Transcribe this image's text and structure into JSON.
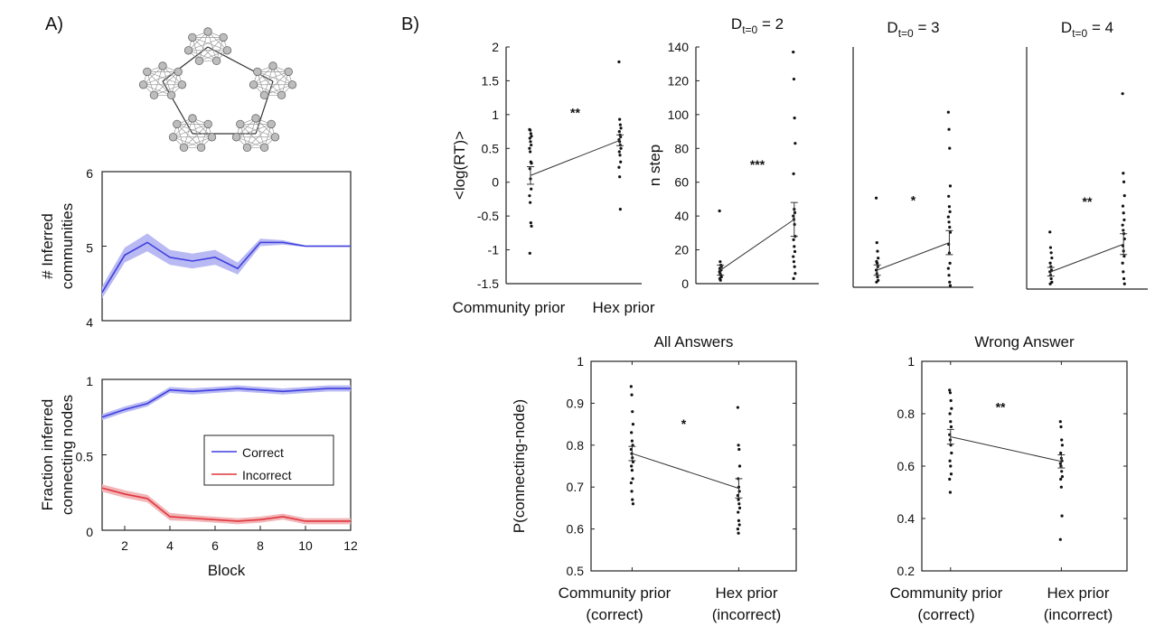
{
  "panels": {
    "a": "A)",
    "b": "B)"
  },
  "network": {
    "label": "modular graph of 5 communities"
  },
  "chart_data": [
    {
      "id": "communities",
      "type": "line",
      "ylabel_lines": [
        "# Inferred",
        "communities"
      ],
      "yticks": [
        4,
        5,
        6
      ],
      "ylim": [
        4,
        6
      ],
      "xlim": [
        1,
        12
      ],
      "colors": {
        "blue": "#3f3fe0",
        "blue_band": "#b9b9f3"
      },
      "series": [
        {
          "x": [
            1,
            2,
            3,
            4,
            5,
            6,
            7,
            8,
            9,
            10,
            11,
            12
          ],
          "values": [
            4.38,
            4.88,
            5.05,
            4.85,
            4.8,
            4.85,
            4.7,
            5.05,
            5.05,
            5.0,
            5.0,
            5.0
          ],
          "band": [
            0.08,
            0.1,
            0.12,
            0.1,
            0.1,
            0.1,
            0.08,
            0.05,
            0.03,
            0.01,
            0.01,
            0.01
          ]
        }
      ]
    },
    {
      "id": "fraction",
      "type": "line",
      "ylabel_lines": [
        "Fraction inferred",
        "connecting nodes"
      ],
      "xlabel": "Block",
      "xticks": [
        2,
        4,
        6,
        8,
        10,
        12
      ],
      "yticks": [
        0,
        0.5,
        1
      ],
      "ylim": [
        0,
        1
      ],
      "xlim": [
        1,
        12
      ],
      "legend_position": "center-right",
      "series": [
        {
          "name": "Correct",
          "color": "#3f3fe0",
          "band_color": "#b9b9f3",
          "x": [
            1,
            2,
            3,
            4,
            5,
            6,
            7,
            8,
            9,
            10,
            11,
            12
          ],
          "values": [
            0.75,
            0.8,
            0.84,
            0.93,
            0.92,
            0.93,
            0.94,
            0.93,
            0.92,
            0.93,
            0.94,
            0.94
          ],
          "band": [
            0.02,
            0.02,
            0.02,
            0.02,
            0.02,
            0.02,
            0.02,
            0.02,
            0.02,
            0.02,
            0.02,
            0.02
          ]
        },
        {
          "name": "Incorrect",
          "color": "#e0353b",
          "band_color": "#f2b6b9",
          "x": [
            1,
            2,
            3,
            4,
            5,
            6,
            7,
            8,
            9,
            10,
            11,
            12
          ],
          "values": [
            0.28,
            0.24,
            0.21,
            0.09,
            0.08,
            0.07,
            0.06,
            0.07,
            0.09,
            0.06,
            0.06,
            0.06
          ],
          "band": [
            0.025,
            0.025,
            0.025,
            0.025,
            0.02,
            0.02,
            0.02,
            0.02,
            0.02,
            0.02,
            0.02,
            0.02
          ]
        }
      ]
    },
    {
      "id": "logrt",
      "type": "scatter",
      "ylabel": "<log(RT)>",
      "yticks": [
        "2",
        "1.5",
        "1",
        "0.5",
        "0",
        "-0.5",
        "-1",
        "-1.5"
      ],
      "ytick_values": [
        2,
        1.5,
        1,
        0.5,
        0,
        -0.5,
        -1,
        -1.5
      ],
      "ylim": [
        -1.5,
        2
      ],
      "categories": [
        "Community prior",
        "Hex prior"
      ],
      "significance": "**",
      "means": [
        0.1,
        0.62
      ],
      "errors": [
        0.13,
        0.08
      ],
      "points": [
        [
          0.78,
          0.77,
          0.72,
          0.68,
          0.65,
          0.6,
          0.55,
          0.5,
          0.45,
          0.3,
          0.28,
          0.2,
          0.05,
          -0.1,
          -0.2,
          -0.3,
          -0.6,
          -0.65,
          -1.05
        ],
        [
          1.78,
          0.93,
          0.85,
          0.8,
          0.75,
          0.7,
          0.67,
          0.63,
          0.6,
          0.55,
          0.5,
          0.45,
          0.4,
          0.3,
          0.22,
          0.08,
          -0.4
        ]
      ]
    },
    {
      "id": "nstep2",
      "type": "scatter",
      "title": "D",
      "title_sub": "t=0",
      "title_suffix": " = 2",
      "ylabel": "n step",
      "yticks": [
        "140",
        "120",
        "100",
        "80",
        "60",
        "40",
        "20",
        "0"
      ],
      "ytick_values": [
        140,
        120,
        100,
        80,
        60,
        40,
        20,
        0
      ],
      "ylim": [
        0,
        140
      ],
      "significance": "***",
      "means": [
        8,
        38
      ],
      "errors": [
        3,
        10
      ],
      "points": [
        [
          43,
          13,
          11,
          10,
          9,
          8,
          8,
          7,
          6,
          5,
          4,
          3,
          2
        ],
        [
          137,
          121,
          98,
          83,
          65,
          44,
          42,
          40,
          38,
          35,
          28,
          26,
          22,
          19,
          16,
          13,
          10,
          6,
          3
        ]
      ]
    },
    {
      "id": "nstep3",
      "type": "scatter",
      "title": "D",
      "title_sub": "t=0",
      "title_suffix": " = 3",
      "ylim": [
        0,
        140
      ],
      "significance": "*",
      "means": [
        10,
        26
      ],
      "errors": [
        3,
        7
      ],
      "points": [
        [
          52,
          26,
          21,
          17,
          15,
          14,
          12,
          10,
          8,
          6,
          4,
          3
        ],
        [
          102,
          92,
          81,
          59,
          53,
          47,
          44,
          41,
          38,
          35,
          32,
          25,
          20,
          14,
          11,
          7,
          3,
          1
        ]
      ]
    },
    {
      "id": "nstep4",
      "type": "scatter",
      "title": "D",
      "title_sub": "t=0",
      "title_suffix": " = 4",
      "ylim": [
        0,
        140
      ],
      "significance": "**",
      "means": [
        10,
        26
      ],
      "errors": [
        2.5,
        6
      ],
      "points": [
        [
          33,
          24,
          21,
          18,
          15,
          13,
          11,
          10,
          8,
          6,
          4,
          3
        ],
        [
          113,
          67,
          62,
          54,
          48,
          44,
          40,
          37,
          34,
          32,
          29,
          25,
          22,
          19,
          15,
          10,
          6,
          3
        ]
      ]
    },
    {
      "id": "all_answers",
      "type": "scatter",
      "title": "All Answers",
      "ylabel": "P(connecting-node)",
      "yticks": [
        "1",
        "0.9",
        "0.8",
        "0.7",
        "0.6",
        "0.5"
      ],
      "ytick_values": [
        1,
        0.9,
        0.8,
        0.7,
        0.6,
        0.5
      ],
      "ylim": [
        0.5,
        1
      ],
      "categories": [
        "Community prior",
        "Hex prior"
      ],
      "category_sublabels": [
        "(correct)",
        "(incorrect)"
      ],
      "significance": "*",
      "means": [
        0.78,
        0.697
      ],
      "errors": [
        0.017,
        0.023
      ],
      "points": [
        [
          0.94,
          0.92,
          0.88,
          0.85,
          0.83,
          0.81,
          0.8,
          0.79,
          0.78,
          0.77,
          0.76,
          0.75,
          0.74,
          0.72,
          0.71,
          0.69,
          0.67,
          0.66
        ],
        [
          0.89,
          0.8,
          0.79,
          0.75,
          0.72,
          0.7,
          0.69,
          0.68,
          0.67,
          0.66,
          0.65,
          0.64,
          0.62,
          0.61,
          0.6,
          0.59
        ]
      ]
    },
    {
      "id": "wrong_answer",
      "type": "scatter",
      "title": "Wrong Answer",
      "yticks": [
        "1",
        "0.8",
        "0.6",
        "0.4",
        "0.2"
      ],
      "ytick_values": [
        1,
        0.8,
        0.6,
        0.4,
        0.2
      ],
      "ylim": [
        0.2,
        1
      ],
      "categories": [
        "Community prior",
        "Hex prior"
      ],
      "category_sublabels": [
        "(correct)",
        "(incorrect)"
      ],
      "significance": "**",
      "means": [
        0.712,
        0.618
      ],
      "errors": [
        0.028,
        0.025
      ],
      "points": [
        [
          0.89,
          0.88,
          0.85,
          0.82,
          0.8,
          0.77,
          0.75,
          0.72,
          0.7,
          0.68,
          0.65,
          0.62,
          0.6,
          0.57,
          0.55,
          0.5
        ],
        [
          0.77,
          0.75,
          0.7,
          0.68,
          0.65,
          0.63,
          0.62,
          0.61,
          0.6,
          0.58,
          0.56,
          0.55,
          0.52,
          0.41,
          0.32
        ]
      ]
    }
  ]
}
